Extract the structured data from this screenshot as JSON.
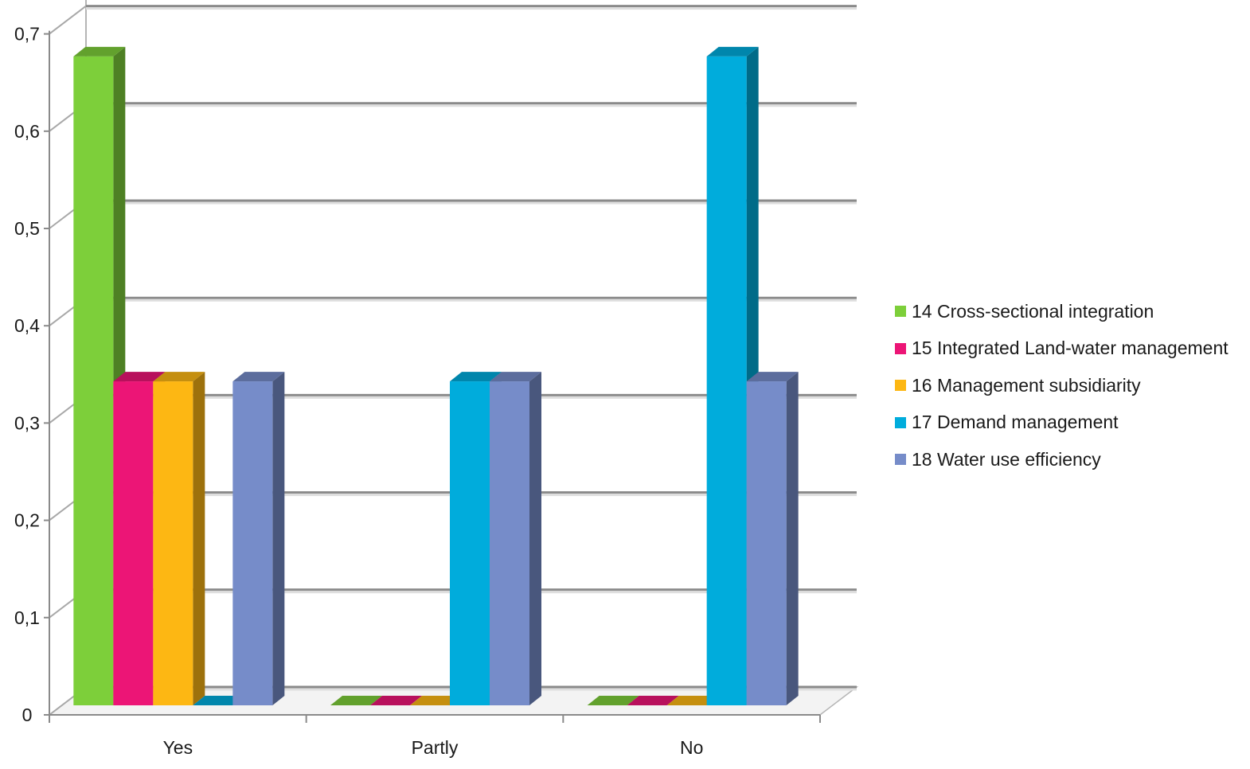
{
  "chart_data": {
    "type": "bar",
    "title": "",
    "xlabel": "",
    "ylabel": "",
    "categories": [
      "Yes",
      "Partly",
      "No"
    ],
    "ylim": [
      0,
      0.7
    ],
    "y_ticks": [
      "0",
      "0,1",
      "0,2",
      "0,3",
      "0,4",
      "0,5",
      "0,6",
      "0,7"
    ],
    "grid": true,
    "legend_position": "right",
    "series": [
      {
        "name": "14 Cross-sectional integration",
        "color": "#7dcf3a",
        "values": [
          0.667,
          0,
          0
        ]
      },
      {
        "name": "15 Integrated Land-water management",
        "color": "#ec1576",
        "values": [
          0.333,
          0,
          0
        ]
      },
      {
        "name": "16 Management subsidiarity",
        "color": "#fdb713",
        "values": [
          0.333,
          0,
          0
        ]
      },
      {
        "name": "17 Demand management",
        "color": "#00acdc",
        "values": [
          0,
          0.333,
          0.667
        ]
      },
      {
        "name": "18 Water use efficiency",
        "color": "#768cc9",
        "values": [
          0.333,
          0.333,
          0.333
        ]
      }
    ]
  }
}
